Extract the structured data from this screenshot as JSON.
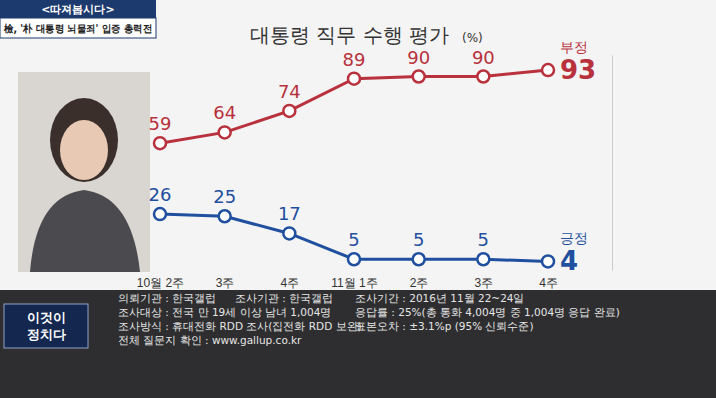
{
  "chart_data": {
    "type": "line",
    "title": "대통령 직무 수행 평가",
    "unit": "(%)",
    "categories": [
      "10월 2주",
      "3주",
      "4주",
      "11월 1주",
      "2주",
      "3주",
      "4주"
    ],
    "series": [
      {
        "name": "부정",
        "color": "#b8313c",
        "marker": "circle",
        "values": [
          59,
          64,
          74,
          89,
          90,
          90,
          93
        ]
      },
      {
        "name": "긍정",
        "color": "#1f4f9e",
        "marker": "circle",
        "values": [
          26,
          25,
          17,
          5,
          5,
          5,
          4
        ]
      }
    ],
    "ylim": [
      0,
      100
    ],
    "data_labels": true,
    "tick_labels": "x",
    "grid": false
  },
  "caption": {
    "tag": "<따져봅시다>",
    "headline": "檢, '朴 대통령 뇌물죄' 입증 총력전"
  },
  "logo": [
    "이것이",
    "정치다"
  ],
  "survey_info": [
    [
      "의뢰기관 : 한국갤럽",
      "조사기관 : 한국갤럽",
      "조사기간 : 2016년 11월 22~24일"
    ],
    [
      "조사대상 : 전국 만 19세 이상 남녀 1,004명",
      "응답률 : 25%(총 통화 4,004명 중 1,004명 응답 완료)"
    ],
    [
      "조사방식 : 휴대전화 RDD 조사(집전화 RDD 보완)",
      "표본오차 : ±3.1%p (95% 신뢰수준)"
    ],
    [
      "전체 질문지 확인 : www.gallup.co.kr"
    ]
  ]
}
